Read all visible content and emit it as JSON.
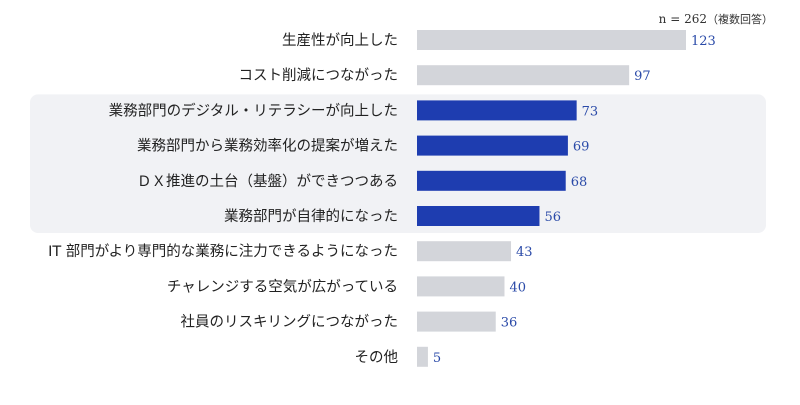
{
  "chart_data": {
    "type": "bar",
    "orientation": "horizontal",
    "sample_note": "n = 262",
    "sample_note_paren": "（複数回答）",
    "categories": [
      "生産性が向上した",
      "コスト削減につながった",
      "業務部門のデジタル・リテラシーが向上した",
      "業務部門から業務効率化の提案が増えた",
      "ＤＸ推進の土台（基盤）ができつつある",
      "業務部門が自律的になった",
      "IT 部門がより専門的な業務に注力できるようになった",
      "チャレンジする空気が広がっている",
      "社員のリスキリングにつながった",
      "その他"
    ],
    "values": [
      123,
      97,
      73,
      69,
      68,
      56,
      43,
      40,
      36,
      5
    ],
    "highlighted": [
      false,
      false,
      true,
      true,
      true,
      true,
      false,
      false,
      false,
      false
    ],
    "xlim": [
      0,
      123
    ],
    "colors": {
      "bar_default": "#d3d5da",
      "bar_highlight": "#1e3db0",
      "value_text": "#2a4aa8",
      "label_text": "#222222",
      "highlight_bg": "#f1f2f5"
    }
  }
}
